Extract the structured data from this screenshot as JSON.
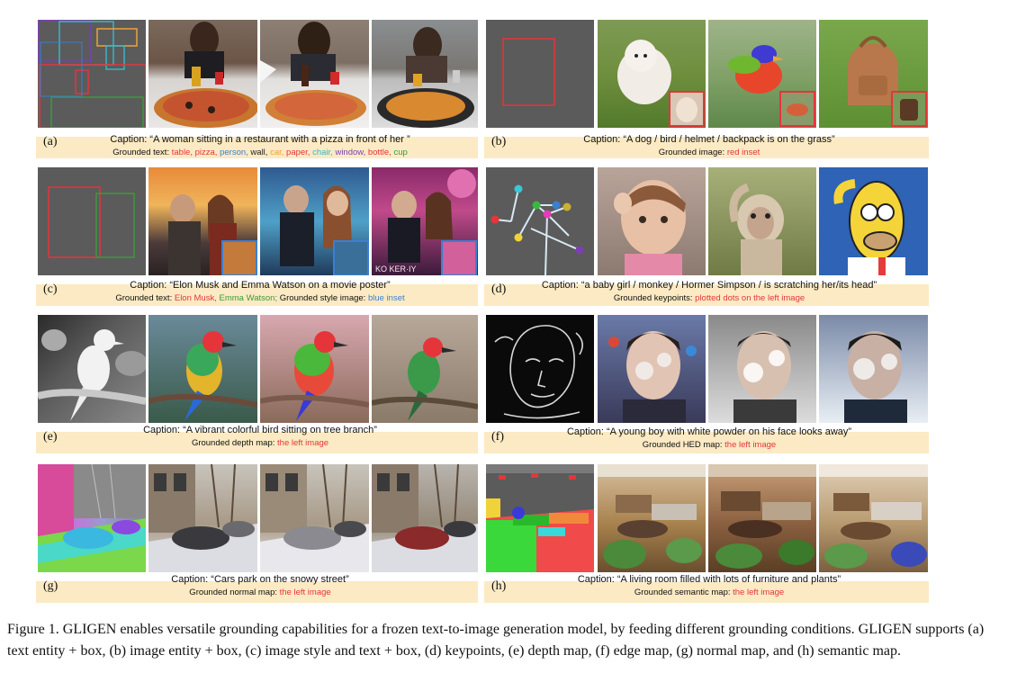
{
  "panels": [
    {
      "label": "(a)",
      "caption": "Caption: “A woman sitting in a restaurant with a pizza in front of her ”",
      "grounded_prefix": "Grounded text:",
      "grounded_items": [
        {
          "text": "table,",
          "color": "#e5353b"
        },
        {
          "text": "pizza,",
          "color": "#e5353b"
        },
        {
          "text": "person,",
          "color": "#3a7fd1"
        },
        {
          "text": "wall,",
          "color": "#222222"
        },
        {
          "text": "car,",
          "color": "#f0a23a"
        },
        {
          "text": "paper,",
          "color": "#e5353b"
        },
        {
          "text": "chair,",
          "color": "#36b5c9"
        },
        {
          "text": "window,",
          "color": "#7b3fb3"
        },
        {
          "text": "bottle,",
          "color": "#e5353b"
        },
        {
          "text": "cup",
          "color": "#3a9a3a"
        }
      ]
    },
    {
      "label": "(b)",
      "caption": "Caption: “A dog / bird / helmet / backpack is on the grass”",
      "grounded_prefix": "Grounded image:",
      "grounded_items": [
        {
          "text": "red inset",
          "color": "#e5353b"
        }
      ]
    },
    {
      "label": "(c)",
      "caption": "Caption: “Elon Musk and Emma Watson on a movie poster”",
      "grounded_prefix": "Grounded text:",
      "grounded_items": [
        {
          "text": "Elon Musk,",
          "color": "#e5353b"
        },
        {
          "text": "Emma Watson;",
          "color": "#3a9a3a"
        },
        {
          "text": "Grounded style image:",
          "color": "#111111"
        },
        {
          "text": "blue inset",
          "color": "#3a7fd1"
        }
      ]
    },
    {
      "label": "(d)",
      "caption": "Caption: “a baby girl / monkey / Hormer Simpson / is scratching her/its head”",
      "grounded_prefix": "Grounded keypoints:",
      "grounded_items": [
        {
          "text": "plotted dots on the left image",
          "color": "#e5353b"
        }
      ]
    },
    {
      "label": "(e)",
      "caption": "Caption: “A vibrant colorful bird sitting on tree branch”",
      "grounded_prefix": "Grounded depth map:",
      "grounded_items": [
        {
          "text": "the left image",
          "color": "#e5353b"
        }
      ]
    },
    {
      "label": "(f)",
      "caption": "Caption: “A young boy with white powder on his face looks away”",
      "grounded_prefix": "Grounded HED map:",
      "grounded_items": [
        {
          "text": "the left image",
          "color": "#e5353b"
        }
      ]
    },
    {
      "label": "(g)",
      "caption": "Caption: “Cars park on the snowy street”",
      "grounded_prefix": "Grounded normal map:",
      "grounded_items": [
        {
          "text": "the left image",
          "color": "#e5353b"
        }
      ]
    },
    {
      "label": "(h)",
      "caption": "Caption: “A living room filled with lots of furniture and plants”",
      "grounded_prefix": "Grounded semantic map:",
      "grounded_items": [
        {
          "text": "the left image",
          "color": "#e5353b"
        }
      ]
    }
  ],
  "figure_caption": {
    "prefix": "Figure 1.",
    "model_name": "GLIGEN",
    "part1": "enables versatile grounding capabilities for a frozen text-to-image generation model, by feeding different grounding conditions.",
    "part2": "supports (a) text entity + box, (b) image entity + box, (c) image style and text + box, (d) keypoints, (e) depth map, (f) edge map, (g) normal map, and (h) semantic map."
  },
  "poster_text": "KO KER·IY"
}
